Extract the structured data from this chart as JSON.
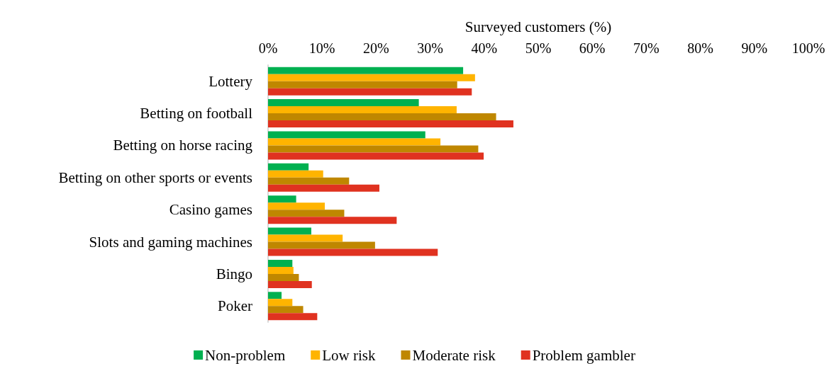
{
  "chart_data": {
    "type": "bar",
    "orientation": "horizontal",
    "xlabel": "Surveyed customers (%)",
    "categories": [
      "Lottery",
      "Betting on football",
      "Betting on horse racing",
      "Betting on other sports or events",
      "Casino games",
      "Slots and gaming machines",
      "Bingo",
      "Poker"
    ],
    "series": [
      {
        "name": "Non-problem",
        "color": "#00b050",
        "values": [
          36.1,
          27.9,
          29.1,
          7.5,
          5.2,
          8.0,
          4.5,
          2.5
        ]
      },
      {
        "name": "Low risk",
        "color": "#ffb400",
        "values": [
          38.3,
          34.9,
          31.9,
          10.2,
          10.5,
          13.8,
          4.7,
          4.5
        ]
      },
      {
        "name": "Moderate risk",
        "color": "#bf8700",
        "values": [
          35.0,
          42.2,
          38.9,
          15.0,
          14.1,
          19.8,
          5.7,
          6.5
        ]
      },
      {
        "name": "Problem gambler",
        "color": "#e03220",
        "values": [
          37.7,
          45.4,
          39.9,
          20.6,
          23.8,
          31.4,
          8.1,
          9.1
        ]
      }
    ],
    "xlim": [
      0,
      100
    ],
    "xticks": [
      {
        "value": 0,
        "label": "0%"
      },
      {
        "value": 10,
        "label": "10%"
      },
      {
        "value": 20,
        "label": "20%"
      },
      {
        "value": 30,
        "label": "30%"
      },
      {
        "value": 40,
        "label": "40%"
      },
      {
        "value": 50,
        "label": "50%"
      },
      {
        "value": 60,
        "label": "60%"
      },
      {
        "value": 70,
        "label": "70%"
      },
      {
        "value": 80,
        "label": "80%"
      },
      {
        "value": 90,
        "label": "90%"
      },
      {
        "value": 100,
        "label": "100%"
      }
    ],
    "grid": false,
    "legend": "bottom"
  }
}
